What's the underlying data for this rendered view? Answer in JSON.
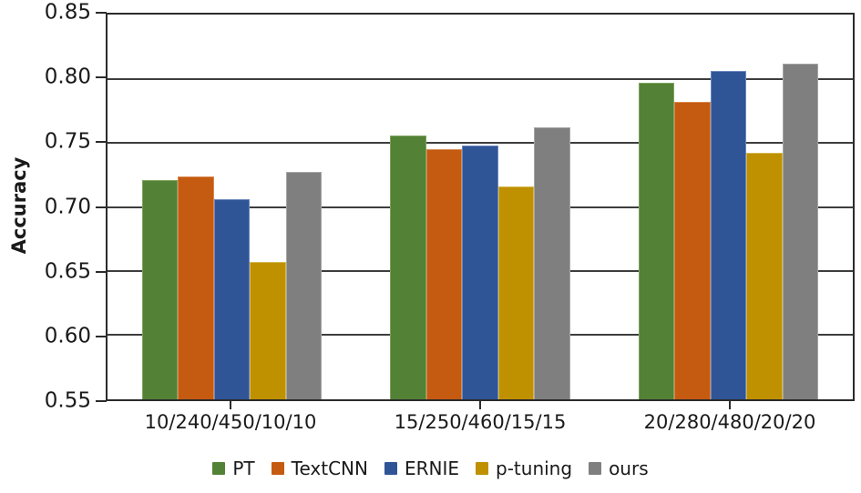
{
  "figure": {
    "background": "#ffffff",
    "text_color": "#1a1a1a",
    "axis_color": "#2b2b2b",
    "grid_color": "#3d3d3d"
  },
  "chart_data": {
    "type": "bar",
    "title": "",
    "xlabel": "",
    "ylabel": "Accuracy",
    "ylim": [
      0.55,
      0.85
    ],
    "ytick_step": 0.05,
    "yticks": [
      0.55,
      0.6,
      0.65,
      0.7,
      0.75,
      0.8,
      0.85
    ],
    "ytick_labels": [
      "0.55",
      "0.60",
      "0.65",
      "0.70",
      "0.75",
      "0.80",
      "0.85"
    ],
    "grid": true,
    "legend_position": "bottom",
    "categories": [
      "10/240/450/10/10",
      "15/250/460/15/15",
      "20/280/480/20/20"
    ],
    "series": [
      {
        "name": "PT",
        "color": "#538135",
        "edge": "#7ea35c",
        "values": [
          0.721,
          0.756,
          0.797
        ]
      },
      {
        "name": "TextCNN",
        "color": "#c55a11",
        "edge": "#d88a52",
        "values": [
          0.724,
          0.745,
          0.782
        ]
      },
      {
        "name": "ERNIE",
        "color": "#2f5597",
        "edge": "#6b87bd",
        "values": [
          0.706,
          0.748,
          0.806
        ]
      },
      {
        "name": "p-tuning",
        "color": "#bf9000",
        "edge": "#d4b84d",
        "values": [
          0.657,
          0.716,
          0.742
        ]
      },
      {
        "name": "ours",
        "color": "#7f7f7f",
        "edge": "#a6a6a6",
        "values": [
          0.727,
          0.762,
          0.812
        ]
      }
    ]
  }
}
